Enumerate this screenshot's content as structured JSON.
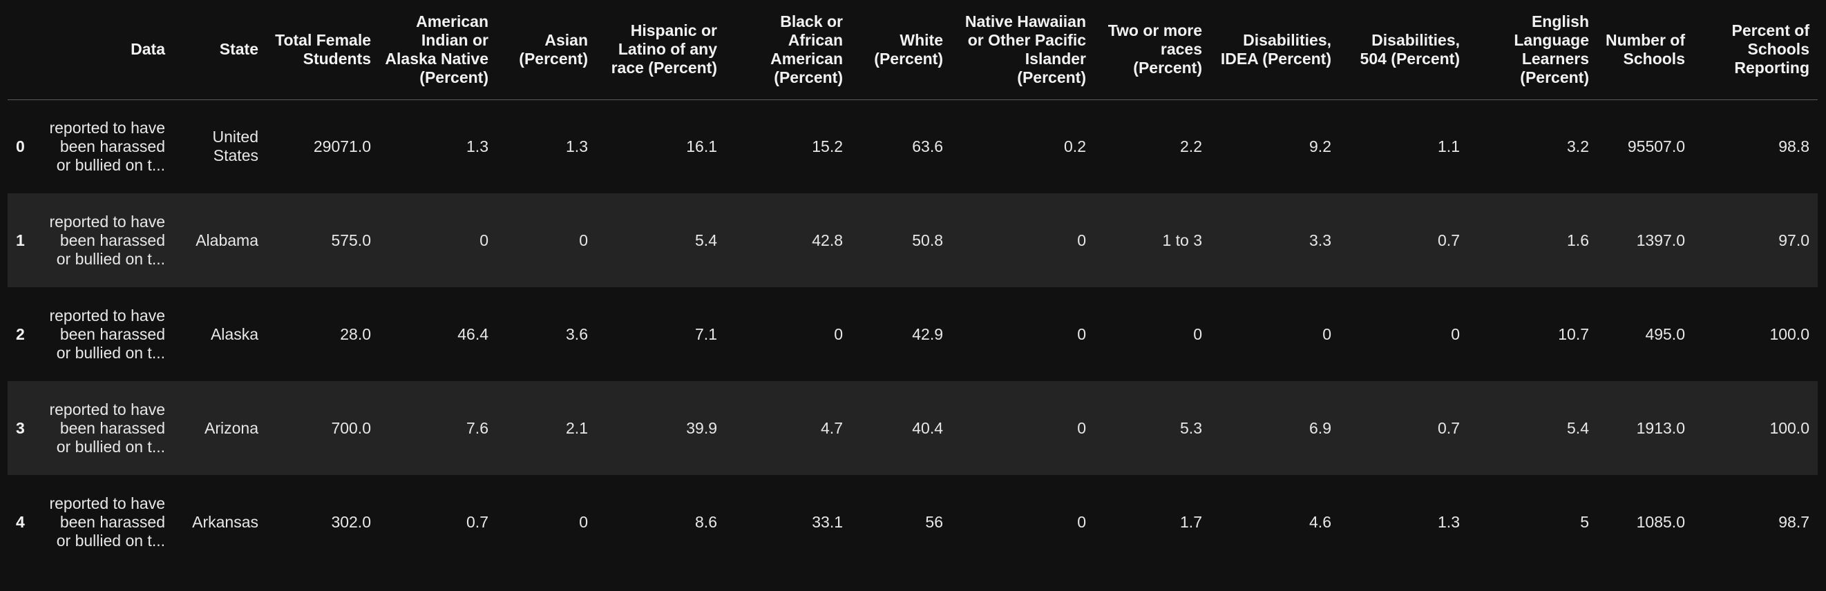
{
  "table": {
    "columns": [
      "",
      "Data",
      "State",
      "Total Female Students",
      "American Indian or Alaska Native (Percent)",
      "Asian (Percent)",
      "Hispanic or Latino of any race (Percent)",
      "Black or African American (Percent)",
      "White (Percent)",
      "Native Hawaiian or Other Pacific Islander (Percent)",
      "Two or more races (Percent)",
      "Disabilities, IDEA (Percent)",
      "Disabilities, 504 (Percent)",
      "English Language Learners (Percent)",
      "Number of Schools",
      "Percent of Schools Reporting"
    ],
    "rows": [
      {
        "index": "0",
        "cells": [
          "reported to have been harassed or bullied on t...",
          "United States",
          "29071.0",
          "1.3",
          "1.3",
          "16.1",
          "15.2",
          "63.6",
          "0.2",
          "2.2",
          "9.2",
          "1.1",
          "3.2",
          "95507.0",
          "98.8"
        ]
      },
      {
        "index": "1",
        "cells": [
          "reported to have been harassed or bullied on t...",
          "Alabama",
          "575.0",
          "0",
          "0",
          "5.4",
          "42.8",
          "50.8",
          "0",
          "1 to 3",
          "3.3",
          "0.7",
          "1.6",
          "1397.0",
          "97.0"
        ]
      },
      {
        "index": "2",
        "cells": [
          "reported to have been harassed or bullied on t...",
          "Alaska",
          "28.0",
          "46.4",
          "3.6",
          "7.1",
          "0",
          "42.9",
          "0",
          "0",
          "0",
          "0",
          "10.7",
          "495.0",
          "100.0"
        ]
      },
      {
        "index": "3",
        "cells": [
          "reported to have been harassed or bullied on t...",
          "Arizona",
          "700.0",
          "7.6",
          "2.1",
          "39.9",
          "4.7",
          "40.4",
          "0",
          "5.3",
          "6.9",
          "0.7",
          "5.4",
          "1913.0",
          "100.0"
        ]
      },
      {
        "index": "4",
        "cells": [
          "reported to have been harassed or bullied on t...",
          "Arkansas",
          "302.0",
          "0.7",
          "0",
          "8.6",
          "33.1",
          "56",
          "0",
          "1.7",
          "4.6",
          "1.3",
          "5",
          "1085.0",
          "98.7"
        ]
      }
    ]
  },
  "colors": {
    "background": "#111111",
    "striped_row": "#242424",
    "header_rule": "#5a5a5a",
    "text": "#e8e8e8"
  }
}
